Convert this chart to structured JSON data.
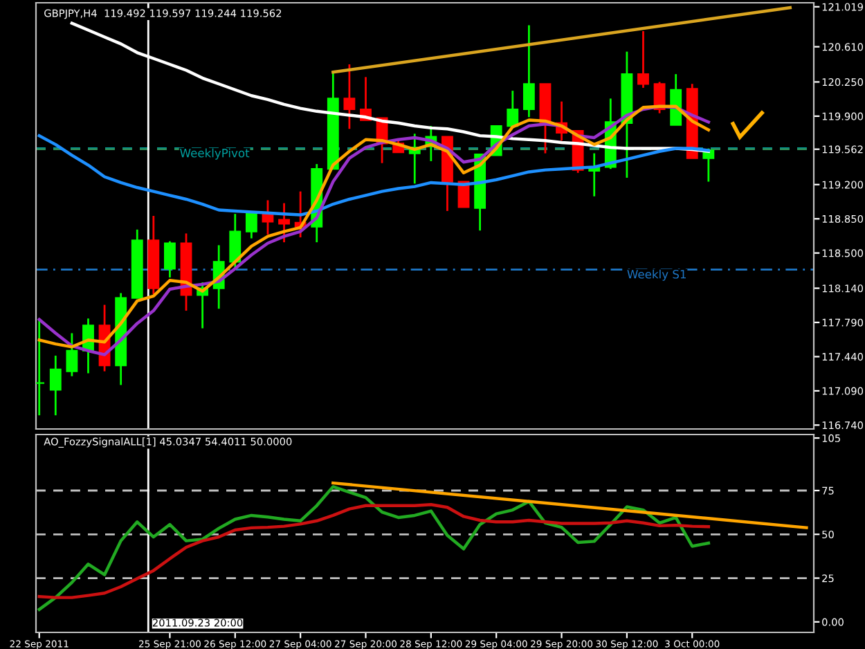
{
  "chart_data": [
    {
      "type": "candlestick",
      "title": "GBPJPY,H4  119.492 119.597 119.244 119.562",
      "categories": [
        null,
        null,
        null,
        null,
        null,
        null,
        null,
        null,
        null,
        null,
        null,
        null,
        null,
        null,
        null,
        null,
        null,
        null,
        null,
        null,
        null,
        null,
        null,
        null,
        null,
        null,
        null,
        null,
        null,
        null,
        null,
        null,
        null,
        null,
        null,
        null,
        null,
        null,
        null,
        null,
        null,
        null,
        null,
        null,
        null,
        null,
        null,
        null
      ],
      "ohlc": [
        [
          117.17,
          117.82,
          116.84,
          117.17
        ],
        [
          117.1,
          117.45,
          116.84,
          117.31
        ],
        [
          117.29,
          117.68,
          117.24,
          117.5
        ],
        [
          117.5,
          117.83,
          117.27,
          117.76
        ],
        [
          117.76,
          117.97,
          117.29,
          117.35
        ],
        [
          117.35,
          118.09,
          117.15,
          118.04
        ],
        [
          118.04,
          118.74,
          118.04,
          118.63
        ],
        [
          118.63,
          118.88,
          118.08,
          118.14
        ],
        [
          118.34,
          118.62,
          118.25,
          118.6
        ],
        [
          118.6,
          118.7,
          117.91,
          118.07
        ],
        [
          118.07,
          118.2,
          117.73,
          118.14
        ],
        [
          118.14,
          118.58,
          117.93,
          118.41
        ],
        [
          118.41,
          118.9,
          118.34,
          118.72
        ],
        [
          118.72,
          118.91,
          118.65,
          118.91
        ],
        [
          118.9,
          119.04,
          118.69,
          118.82
        ],
        [
          118.84,
          119.01,
          118.61,
          118.8
        ],
        [
          118.81,
          119.13,
          118.66,
          118.77
        ],
        [
          118.77,
          119.41,
          118.61,
          119.36
        ],
        [
          119.36,
          120.35,
          119.36,
          120.08
        ],
        [
          120.08,
          120.43,
          119.77,
          119.97
        ],
        [
          119.97,
          120.3,
          119.86,
          119.86
        ],
        [
          119.88,
          119.88,
          119.42,
          119.62
        ],
        [
          119.62,
          119.65,
          119.53,
          119.53
        ],
        [
          119.52,
          119.72,
          119.21,
          119.58
        ],
        [
          119.59,
          119.8,
          119.44,
          119.69
        ],
        [
          119.69,
          119.69,
          118.93,
          119.23
        ],
        [
          119.23,
          119.23,
          118.97,
          118.97
        ],
        [
          118.96,
          119.51,
          118.73,
          119.51
        ],
        [
          119.5,
          119.8,
          119.5,
          119.8
        ],
        [
          119.8,
          120.16,
          119.8,
          119.97
        ],
        [
          119.97,
          120.83,
          119.89,
          120.23
        ],
        [
          120.23,
          120.23,
          119.52,
          119.83
        ],
        [
          119.83,
          120.05,
          119.65,
          119.73
        ],
        [
          119.75,
          119.75,
          119.32,
          119.35
        ],
        [
          119.34,
          119.52,
          119.08,
          119.38
        ],
        [
          119.38,
          120.08,
          119.36,
          119.84
        ],
        [
          119.83,
          120.56,
          119.27,
          120.33
        ],
        [
          120.33,
          120.77,
          120.19,
          120.23
        ],
        [
          120.23,
          120.25,
          119.93,
          119.97
        ],
        [
          119.81,
          120.33,
          119.81,
          120.17
        ],
        [
          120.18,
          120.23,
          119.47,
          119.47
        ],
        [
          119.47,
          119.57,
          119.23,
          119.55
        ],
        null,
        null,
        null,
        null,
        null,
        null
      ],
      "colors": [
        "#00ff00",
        "#00ff00",
        "#00ff00",
        "#00ff00",
        "#ff0000",
        "#00ff00",
        "#00ff00",
        "#ff0000",
        "#00ff00",
        "#ff0000",
        "#00ff00",
        "#00ff00",
        "#00ff00",
        "#00ff00",
        "#ff0000",
        "#ff0000",
        "#ff0000",
        "#00ff00",
        "#00ff00",
        "#ff0000",
        "#ff0000",
        "#ff0000",
        "#ff0000",
        "#00ff00",
        "#00ff00",
        "#ff0000",
        "#ff0000",
        "#00ff00",
        "#00ff00",
        "#00ff00",
        "#00ff00",
        "#ff0000",
        "#ff0000",
        "#ff0000",
        "#00ff00",
        "#00ff00",
        "#00ff00",
        "#ff0000",
        "#ff0000",
        "#00ff00",
        "#ff0000",
        "#00ff00",
        null,
        null,
        null,
        null,
        null,
        null
      ],
      "series": [
        {
          "type": "line",
          "color": "#ffffff",
          "values": [
            null,
            null,
            120.85,
            120.78,
            120.71,
            120.64,
            120.55,
            120.49,
            120.43,
            120.37,
            120.29,
            120.23,
            120.17,
            120.11,
            120.07,
            120.02,
            119.98,
            119.95,
            119.93,
            119.91,
            119.89,
            119.85,
            119.83,
            119.8,
            119.78,
            119.77,
            119.74,
            119.7,
            119.69,
            119.67,
            119.66,
            119.65,
            119.63,
            119.62,
            119.6,
            119.58,
            119.57,
            119.57,
            119.57,
            119.57,
            119.56,
            119.54,
            null,
            null,
            null,
            null,
            null,
            null
          ]
        },
        {
          "type": "line",
          "color": "#1e90ff",
          "values": [
            119.7,
            119.61,
            119.5,
            119.4,
            119.28,
            119.22,
            119.17,
            119.13,
            119.09,
            119.05,
            119.0,
            118.94,
            118.93,
            118.92,
            118.91,
            118.9,
            118.89,
            118.93,
            119.0,
            119.05,
            119.09,
            119.13,
            119.16,
            119.18,
            119.22,
            119.21,
            119.2,
            119.22,
            119.25,
            119.29,
            119.33,
            119.35,
            119.36,
            119.37,
            119.38,
            119.42,
            119.46,
            119.5,
            119.54,
            119.57,
            119.57,
            119.55,
            null,
            null,
            null,
            null,
            null,
            null
          ]
        },
        {
          "type": "line",
          "color": "#9932cc",
          "values": [
            117.82,
            117.68,
            117.55,
            117.5,
            117.46,
            117.61,
            117.78,
            117.91,
            118.13,
            118.16,
            118.18,
            118.21,
            118.34,
            118.48,
            118.6,
            118.67,
            118.72,
            118.86,
            119.23,
            119.47,
            119.58,
            119.63,
            119.66,
            119.68,
            119.65,
            119.57,
            119.43,
            119.46,
            119.61,
            119.71,
            119.8,
            119.82,
            119.8,
            119.7,
            119.68,
            119.79,
            119.91,
            119.97,
            120.0,
            119.99,
            119.91,
            119.84,
            null,
            null,
            null,
            null,
            null,
            null
          ]
        },
        {
          "type": "line",
          "color": "#ffa500",
          "values": [
            117.61,
            117.57,
            117.54,
            117.61,
            117.59,
            117.78,
            118.01,
            118.06,
            118.22,
            118.2,
            118.11,
            118.25,
            118.41,
            118.57,
            118.67,
            118.72,
            118.76,
            119.04,
            119.4,
            119.54,
            119.66,
            119.65,
            119.61,
            119.56,
            119.61,
            119.54,
            119.32,
            119.4,
            119.57,
            119.79,
            119.86,
            119.85,
            119.8,
            119.7,
            119.61,
            119.68,
            119.86,
            119.99,
            120.0,
            120.0,
            119.85,
            119.76,
            null,
            null,
            null,
            null,
            null,
            null
          ]
        },
        {
          "type": "line",
          "color": "#daa520",
          "values": [
            null,
            null,
            null,
            null,
            null,
            null,
            null,
            null,
            null,
            null,
            null,
            null,
            null,
            null,
            null,
            null,
            null,
            null,
            120.35,
            null,
            null,
            null,
            null,
            null,
            null,
            null,
            null,
            null,
            null,
            null,
            null,
            null,
            null,
            null,
            null,
            null,
            null,
            null,
            null,
            null,
            null,
            null,
            null,
            null,
            null,
            null,
            121.01,
            null
          ]
        }
      ],
      "ylim": [
        116.7,
        121.06
      ],
      "yticks": [
        {
          "value": 116.74,
          "label": "116.740"
        },
        {
          "value": 117.09,
          "label": "117.090"
        },
        {
          "value": 117.44,
          "label": "117.440"
        },
        {
          "value": 117.79,
          "label": "117.790"
        },
        {
          "value": 118.14,
          "label": "118.140"
        },
        {
          "value": 118.5,
          "label": "118.500"
        },
        {
          "value": 118.85,
          "label": "118.850"
        },
        {
          "value": 119.2,
          "label": "119.200"
        },
        119.562,
        {
          "value": 119.9,
          "label": "119.900"
        },
        {
          "value": 120.25,
          "label": "120.250"
        },
        {
          "value": 120.61,
          "label": "120.610"
        },
        121.019
      ],
      "ref_lines": [
        {
          "axis": "y",
          "value": 119.57,
          "label": "WeeklyPivot",
          "color": "#00a0a0",
          "line_style": "dashed"
        },
        {
          "axis": "y",
          "value": 119.562,
          "label": null,
          "color": "#2e8b57",
          "line_style": "dashed"
        },
        {
          "axis": "y",
          "value": 118.33,
          "label": "Weekly S1",
          "color": "#1e78c8",
          "line_style": "dashdot"
        }
      ],
      "tick_labels": "y",
      "grid": false,
      "legend": false
    },
    {
      "type": "line",
      "title": "AO_FozzySignalALL[1] 45.0347 54.4011 50.0000",
      "categories": [
        "22 Sep 2011",
        null,
        null,
        null,
        null,
        null,
        null,
        null,
        "25 Sep 21:00",
        null,
        null,
        null,
        "26 Sep 12:00",
        null,
        null,
        null,
        "27 Sep 04:00",
        null,
        null,
        null,
        "27 Sep 20:00",
        null,
        null,
        null,
        "28 Sep 12:00",
        null,
        null,
        null,
        "29 Sep 04:00",
        null,
        null,
        null,
        "29 Sep 20:00",
        null,
        null,
        null,
        "30 Sep 12:00",
        null,
        null,
        null,
        "3 Oct 00:00",
        null,
        null,
        null,
        null,
        null,
        null,
        null
      ],
      "series": [
        {
          "color": "#22aa22",
          "values": [
            7.1,
            13.9,
            22.5,
            33.0,
            26.9,
            46.3,
            57.1,
            48.5,
            55.6,
            46.3,
            47.2,
            53.4,
            58.6,
            60.8,
            59.9,
            58.6,
            57.7,
            66.4,
            77.2,
            74.1,
            71.0,
            62.7,
            59.6,
            60.8,
            63.3,
            49.4,
            41.7,
            55.6,
            61.7,
            63.9,
            68.8,
            56.5,
            54.0,
            45.4,
            46.0,
            55.6,
            65.7,
            63.9,
            56.5,
            59.6,
            43.2,
            45.0,
            null,
            null,
            null,
            null,
            null,
            null
          ]
        },
        {
          "color": "#cc1111",
          "values": [
            14.5,
            13.9,
            13.9,
            15.1,
            16.4,
            20.1,
            24.7,
            29.3,
            36.1,
            42.6,
            46.3,
            48.5,
            52.5,
            53.7,
            54.0,
            54.6,
            55.9,
            57.7,
            60.8,
            64.5,
            66.4,
            66.4,
            66.4,
            66.4,
            67.0,
            65.4,
            60.2,
            58.0,
            57.1,
            57.1,
            58.0,
            57.1,
            56.2,
            56.2,
            56.2,
            56.5,
            57.7,
            56.5,
            54.9,
            55.2,
            54.6,
            54.4,
            null,
            null,
            null,
            null,
            null,
            null
          ]
        },
        {
          "color": "#ffa500",
          "values": [
            null,
            null,
            null,
            null,
            null,
            null,
            null,
            null,
            null,
            null,
            null,
            null,
            null,
            null,
            null,
            null,
            null,
            null,
            79.3,
            null,
            null,
            null,
            null,
            null,
            null,
            null,
            null,
            null,
            null,
            null,
            null,
            null,
            null,
            null,
            null,
            null,
            null,
            null,
            null,
            null,
            null,
            null,
            null,
            null,
            null,
            null,
            null,
            53.8
          ]
        }
      ],
      "ylim": [
        -6,
        107
      ],
      "yticks": [
        {
          "value": 0,
          "label": "0.00"
        },
        25,
        50,
        75,
        105
      ],
      "ref_lines": [
        {
          "axis": "y",
          "value": 25,
          "label": null,
          "color": "#c0c0c0",
          "line_style": "dashed"
        },
        {
          "axis": "y",
          "value": 50,
          "label": null,
          "color": "#c0c0c0",
          "line_style": "dashed"
        },
        {
          "axis": "y",
          "value": 75,
          "label": null,
          "color": "#c0c0c0",
          "line_style": "dashed"
        }
      ],
      "annotations": [
        "2011.09.23 20:00"
      ],
      "grid": false,
      "legend": false
    }
  ]
}
